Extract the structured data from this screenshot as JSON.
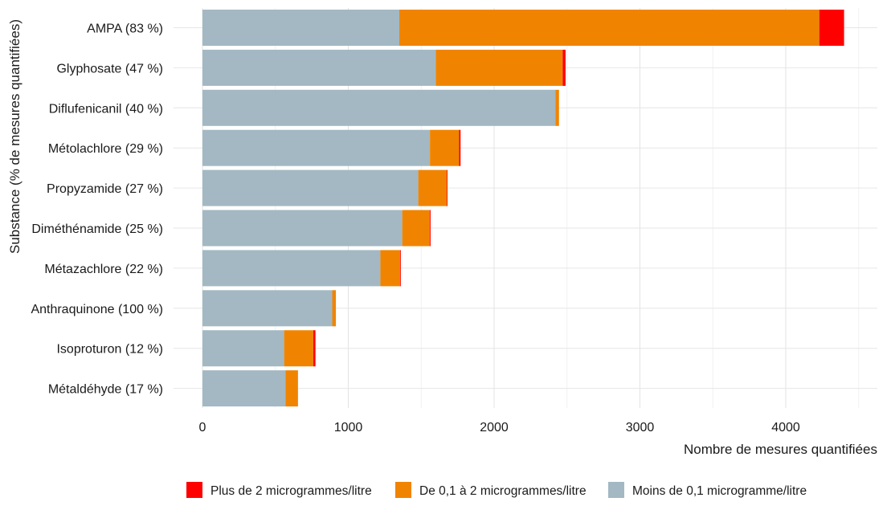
{
  "chart_data": {
    "type": "bar",
    "orientation": "horizontal",
    "stacked": true,
    "xlabel": "Nombre de mesures quantifiées",
    "ylabel": "Substance (% de mesures quantifiées)",
    "xlim": [
      0,
      4600
    ],
    "x_ticks": [
      0,
      1000,
      2000,
      3000,
      4000
    ],
    "grid": true,
    "legend_position": "bottom",
    "categories": [
      "AMPA (83 %)",
      "Glyphosate (47 %)",
      "Diflufenicanil (40 %)",
      "Métolachlore (29 %)",
      "Propyzamide (27 %)",
      "Diméthénamide (25 %)",
      "Métazachlore (22 %)",
      "Anthraquinone (100 %)",
      "Isoproturon (12 %)",
      "Métaldéhyde (17 %)"
    ],
    "series": [
      {
        "name": "Moins de 0,1 microgramme/litre",
        "color": "#a3b8c2",
        "values": [
          1350,
          1600,
          2420,
          1560,
          1480,
          1370,
          1220,
          890,
          560,
          570
        ]
      },
      {
        "name": "De 0,1 à 2 microgrammes/litre",
        "color": "#f08400",
        "values": [
          2880,
          870,
          25,
          200,
          195,
          190,
          135,
          25,
          200,
          85
        ]
      },
      {
        "name": "Plus de 2 microgrammes/litre",
        "color": "#ff0000",
        "values": [
          170,
          20,
          0,
          10,
          5,
          5,
          5,
          0,
          15,
          0
        ]
      }
    ],
    "legend": [
      {
        "label": "Plus de 2 microgrammes/litre",
        "color": "#ff0000"
      },
      {
        "label": "De 0,1 à 2 microgrammes/litre",
        "color": "#f08400"
      },
      {
        "label": "Moins de 0,1 microgramme/litre",
        "color": "#a3b8c2"
      }
    ]
  }
}
